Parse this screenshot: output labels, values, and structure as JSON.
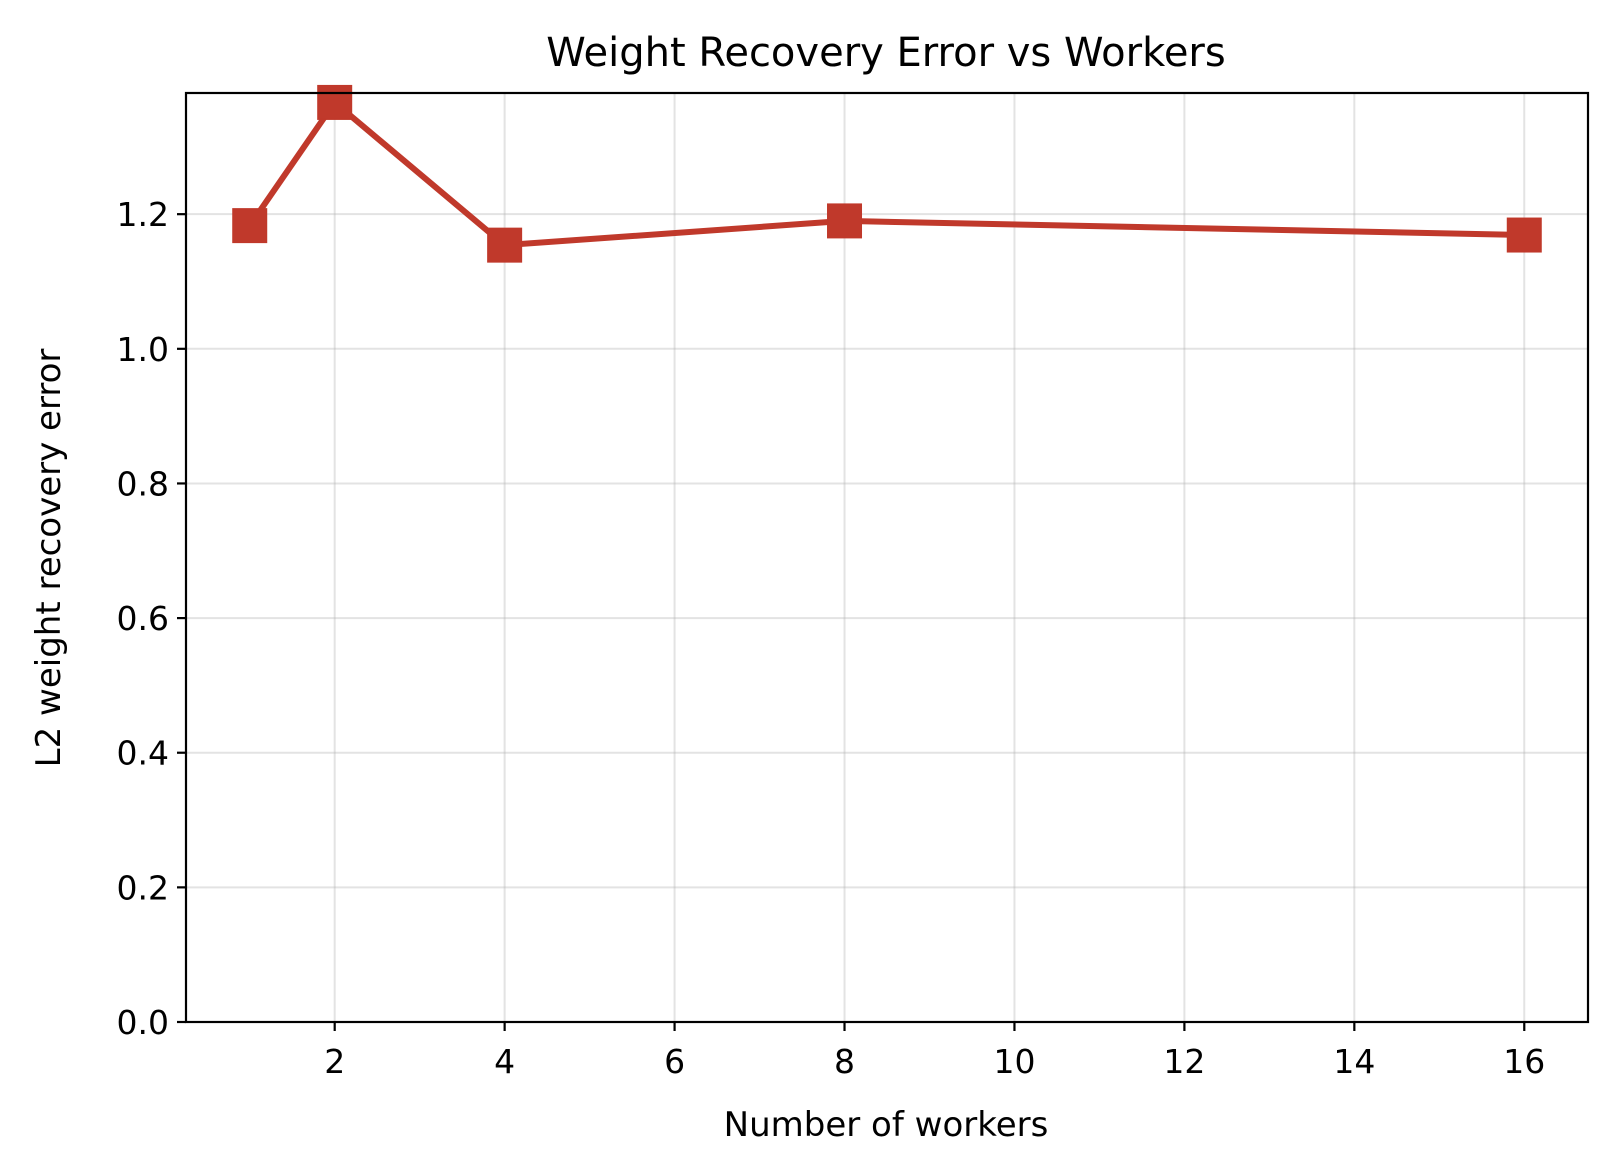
{
  "chart_data": {
    "type": "line",
    "title": "Weight Recovery Error vs Workers",
    "xlabel": "Number of workers",
    "ylabel": "L2 weight recovery error",
    "x": [
      1,
      2,
      4,
      8,
      16
    ],
    "series": [
      {
        "values": [
          1.183,
          1.366,
          1.154,
          1.19,
          1.169
        ],
        "color": "#c0392b",
        "marker": "square"
      }
    ],
    "xlim": [
      0.25,
      16.75
    ],
    "ylim": [
      0.0,
      1.38
    ],
    "xticks": [
      2,
      4,
      6,
      8,
      10,
      12,
      14,
      16
    ],
    "yticks": [
      0.0,
      0.2,
      0.4,
      0.6,
      0.8,
      1.0,
      1.2
    ],
    "ytick_labels": [
      "0.0",
      "0.2",
      "0.4",
      "0.6",
      "0.8",
      "1.0",
      "1.2"
    ],
    "grid": true
  }
}
